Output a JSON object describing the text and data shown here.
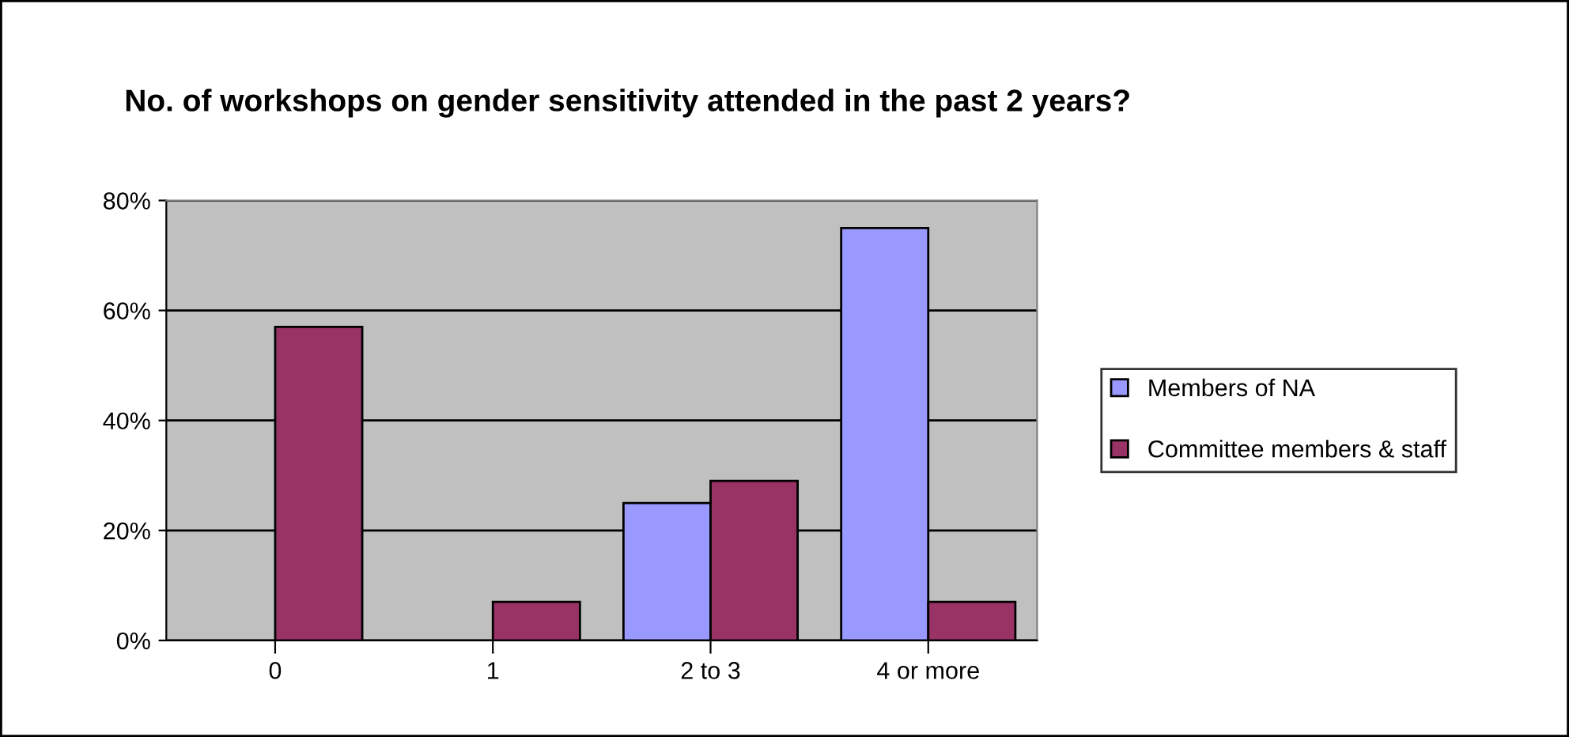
{
  "chart_data": {
    "type": "bar",
    "title": "No. of workshops on gender sensitivity attended in the past 2 years?",
    "categories": [
      "0",
      "1",
      "2 to 3",
      "4 or more"
    ],
    "series": [
      {
        "name": "Members of NA",
        "color": "#9999ff",
        "values": [
          0,
          0,
          25,
          75
        ]
      },
      {
        "name": "Committee members & staff",
        "color": "#993366",
        "values": [
          57,
          7,
          29,
          7
        ]
      }
    ],
    "ylim": [
      0,
      80
    ],
    "yticks": [
      {
        "value": 0,
        "label": "0%"
      },
      {
        "value": 20,
        "label": "20%"
      },
      {
        "value": 40,
        "label": "40%"
      },
      {
        "value": 60,
        "label": "60%"
      },
      {
        "value": 80,
        "label": "80%"
      }
    ],
    "grid": "y",
    "legend": "right"
  }
}
